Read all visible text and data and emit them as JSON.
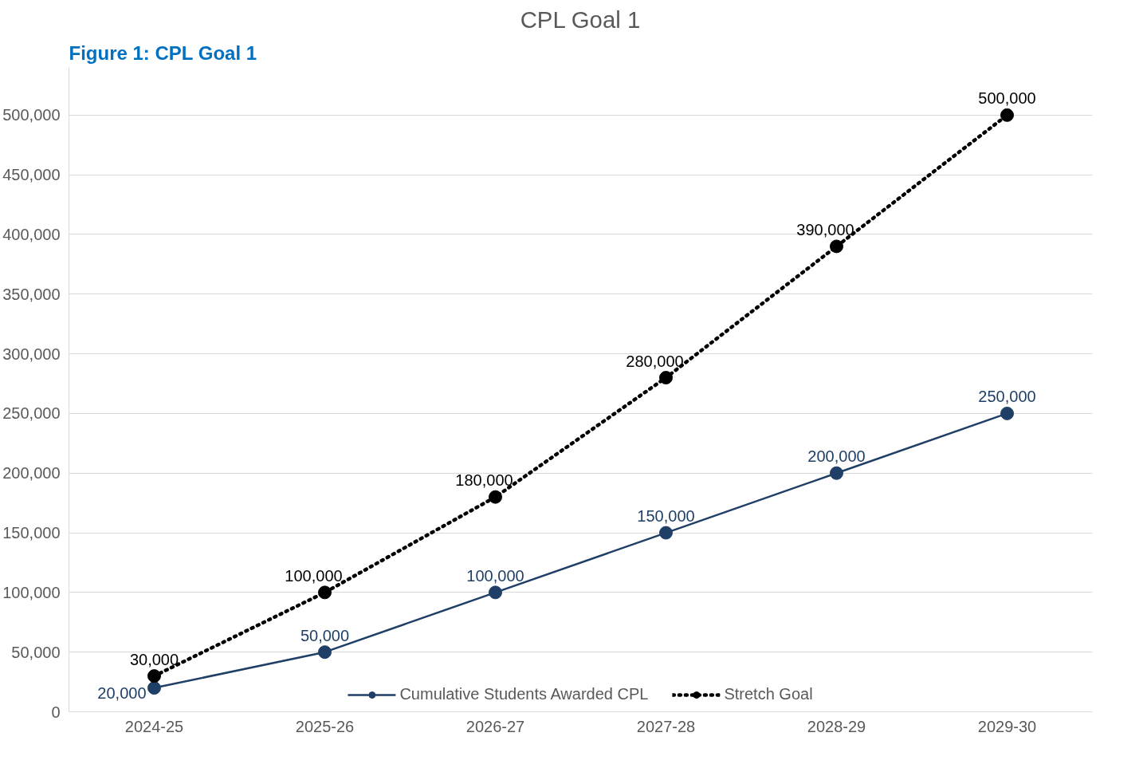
{
  "chart_data": {
    "type": "line",
    "title": "CPL Goal 1",
    "annotations": [
      "Figure 1: CPL Goal 1"
    ],
    "categories": [
      "2024-25",
      "2025-26",
      "2026-27",
      "2027-28",
      "2028-29",
      "2029-30"
    ],
    "series": [
      {
        "name": "Cumulative Students Awarded CPL",
        "color": "#1f3f66",
        "values": [
          20000,
          50000,
          100000,
          150000,
          200000,
          250000
        ],
        "value_labels": [
          "20,000",
          "50,000",
          "100,000",
          "150,000",
          "200,000",
          "250,000"
        ],
        "line_style": "solid"
      },
      {
        "name": "Stretch Goal",
        "color": "#000000",
        "values": [
          30000,
          100000,
          180000,
          280000,
          390000,
          500000
        ],
        "value_labels": [
          "30,000",
          "100,000",
          "180,000",
          "280,000",
          "390,000",
          "500,000"
        ],
        "line_style": "dotted"
      }
    ],
    "ylim": [
      0,
      540000
    ],
    "yticks": [
      {
        "value": 0,
        "label": "0"
      },
      {
        "value": 50000,
        "label": "50,000"
      },
      {
        "value": 100000,
        "label": "100,000"
      },
      {
        "value": 150000,
        "label": "150,000"
      },
      {
        "value": 200000,
        "label": "200,000"
      },
      {
        "value": 250000,
        "label": "250,000"
      },
      {
        "value": 300000,
        "label": "300,000"
      },
      {
        "value": 350000,
        "label": "350,000"
      },
      {
        "value": 400000,
        "label": "400,000"
      },
      {
        "value": 450000,
        "label": "450,000"
      },
      {
        "value": 500000,
        "label": "500,000"
      }
    ],
    "grid": "y",
    "legend": "bottom",
    "marker": "circle"
  }
}
